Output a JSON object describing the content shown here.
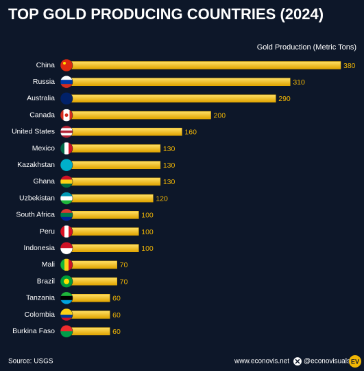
{
  "chart_data": {
    "type": "bar",
    "orientation": "horizontal",
    "title": "TOP GOLD PRODUCING COUNTRIES (2024)",
    "xlabel": "Gold Production (Metric Tons)",
    "categories": [
      "China",
      "Russia",
      "Australia",
      "Canada",
      "United States",
      "Mexico",
      "Kazakhstan",
      "Ghana",
      "Uzbekistan",
      "South Africa",
      "Peru",
      "Indonesia",
      "Mali",
      "Brazil",
      "Tanzania",
      "Colombia",
      "Burkina Faso"
    ],
    "values": [
      380,
      310,
      290,
      200,
      160,
      130,
      130,
      130,
      120,
      100,
      100,
      100,
      70,
      70,
      60,
      60,
      60
    ],
    "color": "#f2b705",
    "source": "Source: USGS",
    "website": "www.econovis.net",
    "social": "@econovisuals",
    "logo": "EV"
  }
}
